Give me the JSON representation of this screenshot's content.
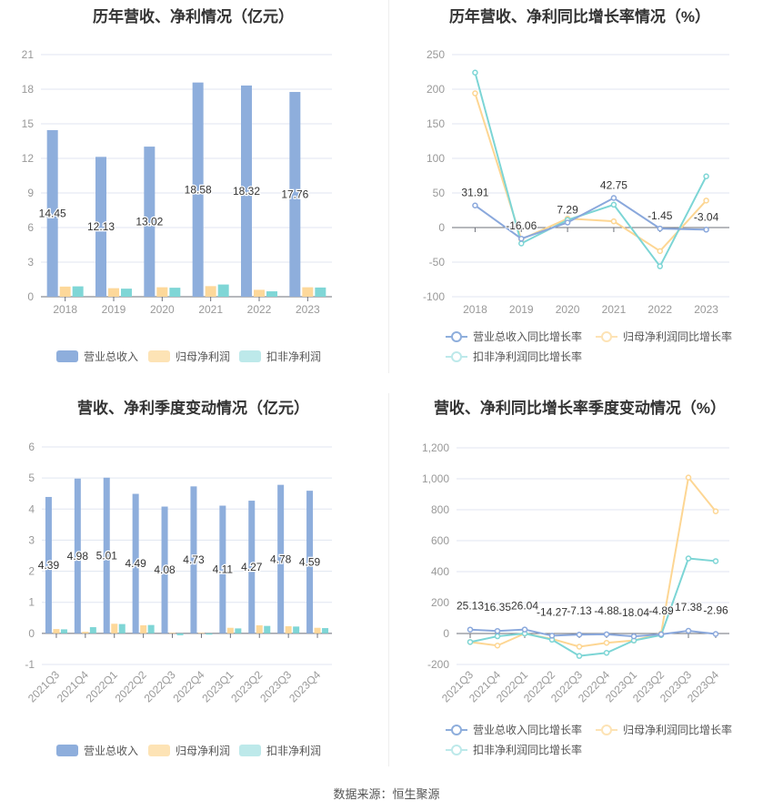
{
  "colors": {
    "revenue": "#8eaedc",
    "net_profit": "#fdd89a",
    "deducted_profit": "#7fd6d6"
  },
  "source": "数据来源：恒生聚源",
  "chart_data": [
    {
      "type": "bar",
      "title": "历年营收、净利情况（亿元）",
      "categories": [
        "2018",
        "2019",
        "2020",
        "2021",
        "2022",
        "2023"
      ],
      "ylim": [
        0,
        21
      ],
      "yticks": [
        0,
        3,
        6,
        9,
        12,
        15,
        18,
        21
      ],
      "legend_position": "bottom",
      "grid": true,
      "series": [
        {
          "name": "营业总收入",
          "values": [
            14.45,
            12.13,
            13.02,
            18.58,
            18.32,
            17.76
          ],
          "labels": [
            "14.45",
            "12.13",
            "13.02",
            "18.58",
            "18.32",
            "17.76"
          ]
        },
        {
          "name": "归母净利润",
          "values": [
            0.88,
            0.74,
            0.82,
            0.92,
            0.6,
            0.82
          ]
        },
        {
          "name": "扣非净利润",
          "values": [
            0.9,
            0.7,
            0.78,
            1.06,
            0.47,
            0.8
          ]
        }
      ]
    },
    {
      "type": "line",
      "title": "历年营收、净利同比增长率情况（%）",
      "categories": [
        "2018",
        "2019",
        "2020",
        "2021",
        "2022",
        "2023"
      ],
      "ylim": [
        -100,
        250
      ],
      "yticks": [
        -100,
        -50,
        0,
        50,
        100,
        150,
        200,
        250
      ],
      "legend_position": "bottom",
      "grid": true,
      "series": [
        {
          "name": "营业总收入同比增长率",
          "values": [
            31.91,
            -16.06,
            7.29,
            42.75,
            -1.45,
            -3.04
          ],
          "labels": [
            "31.91",
            "-16.06",
            "7.29",
            "42.75",
            "-1.45",
            "-3.04"
          ]
        },
        {
          "name": "归母净利润同比增长率",
          "values": [
            194,
            -17,
            13,
            9,
            -34,
            39
          ]
        },
        {
          "name": "扣非净利润同比增长率",
          "values": [
            224,
            -23,
            11,
            33,
            -56,
            74
          ]
        }
      ]
    },
    {
      "type": "bar",
      "title": "营收、净利季度变动情况（亿元）",
      "categories": [
        "2021Q3",
        "2021Q4",
        "2022Q1",
        "2022Q2",
        "2022Q3",
        "2022Q4",
        "2023Q1",
        "2023Q2",
        "2023Q3",
        "2023Q4"
      ],
      "ylim": [
        -1,
        6
      ],
      "yticks": [
        -1,
        0,
        1,
        2,
        3,
        4,
        5,
        6
      ],
      "legend_position": "bottom",
      "grid": true,
      "series": [
        {
          "name": "营业总收入",
          "values": [
            4.39,
            4.98,
            5.01,
            4.49,
            4.08,
            4.73,
            4.11,
            4.27,
            4.78,
            4.59
          ],
          "labels": [
            "4.39",
            "4.98",
            "5.01",
            "4.49",
            "4.08",
            "4.73",
            "4.11",
            "4.27",
            "4.78",
            "4.59"
          ]
        },
        {
          "name": "归母净利润",
          "values": [
            0.14,
            0.05,
            0.31,
            0.26,
            0.02,
            0.02,
            0.18,
            0.26,
            0.23,
            0.18
          ]
        },
        {
          "name": "扣非净利润",
          "values": [
            0.13,
            0.2,
            0.3,
            0.27,
            -0.06,
            -0.04,
            0.16,
            0.24,
            0.22,
            0.17
          ]
        }
      ]
    },
    {
      "type": "line",
      "title": "营收、净利同比增长率季度变动情况（%）",
      "categories": [
        "2021Q3",
        "2021Q4",
        "2022Q1",
        "2022Q2",
        "2022Q3",
        "2022Q4",
        "2023Q1",
        "2023Q2",
        "2023Q3",
        "2023Q4"
      ],
      "ylim": [
        -200,
        1200
      ],
      "yticks": [
        -200,
        0,
        200,
        400,
        600,
        800,
        1000,
        1200
      ],
      "ytick_labels": [
        "-200",
        "0",
        "200",
        "400",
        "600",
        "800",
        "1,000",
        "1,200"
      ],
      "legend_position": "bottom",
      "grid": true,
      "series": [
        {
          "name": "营业总收入同比增长率",
          "values": [
            25.13,
            16.35,
            26.04,
            -14.27,
            -7.13,
            -4.88,
            -18.04,
            -4.89,
            17.38,
            -2.96
          ],
          "labels": [
            "25.13",
            "16.35",
            "26.04",
            "-14.27",
            "-7.13",
            "-4.88",
            "-18.04",
            "-4.89",
            "17.38",
            "-2.96"
          ]
        },
        {
          "name": "归母净利润同比增长率",
          "values": [
            -55,
            -78,
            0,
            -35,
            -85,
            -60,
            -45,
            0,
            1008,
            790
          ]
        },
        {
          "name": "扣非净利润同比增长率",
          "values": [
            -55,
            -18,
            0,
            -40,
            -145,
            -125,
            -45,
            -10,
            485,
            468
          ]
        }
      ]
    }
  ]
}
